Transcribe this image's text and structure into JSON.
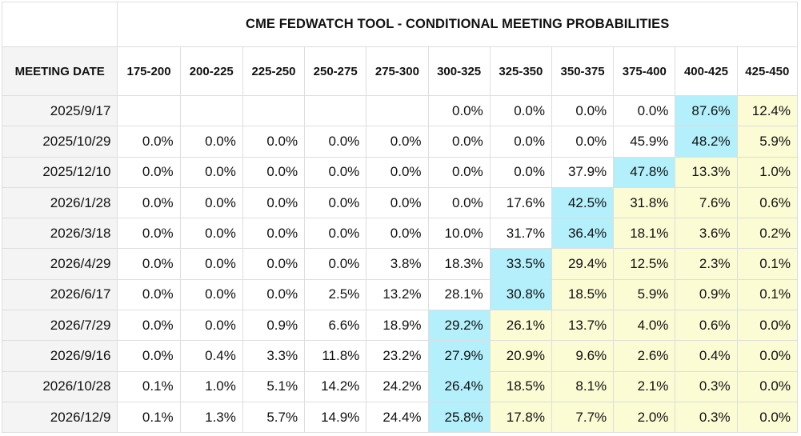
{
  "title": "CME FEDWATCH TOOL - CONDITIONAL MEETING PROBABILITIES",
  "date_header": "MEETING DATE",
  "columns": [
    "175-200",
    "200-225",
    "225-250",
    "250-275",
    "275-300",
    "300-325",
    "325-350",
    "350-375",
    "375-400",
    "400-425",
    "425-450"
  ],
  "colors": {
    "max_highlight": "#b3f0fb",
    "upper_range": "#fbfbd4",
    "date_column_bg": "#f4f4f4",
    "grid": "#dedede"
  },
  "rows": [
    {
      "date": "2025/9/17",
      "values": [
        "",
        "",
        "",
        "",
        "",
        "0.0%",
        "0.0%",
        "0.0%",
        "0.0%",
        "87.6%",
        "12.4%"
      ],
      "max_index": 9
    },
    {
      "date": "2025/10/29",
      "values": [
        "0.0%",
        "0.0%",
        "0.0%",
        "0.0%",
        "0.0%",
        "0.0%",
        "0.0%",
        "0.0%",
        "45.9%",
        "48.2%",
        "5.9%"
      ],
      "max_index": 9
    },
    {
      "date": "2025/12/10",
      "values": [
        "0.0%",
        "0.0%",
        "0.0%",
        "0.0%",
        "0.0%",
        "0.0%",
        "0.0%",
        "37.9%",
        "47.8%",
        "13.3%",
        "1.0%"
      ],
      "max_index": 8
    },
    {
      "date": "2026/1/28",
      "values": [
        "0.0%",
        "0.0%",
        "0.0%",
        "0.0%",
        "0.0%",
        "0.0%",
        "17.6%",
        "42.5%",
        "31.8%",
        "7.6%",
        "0.6%"
      ],
      "max_index": 7
    },
    {
      "date": "2026/3/18",
      "values": [
        "0.0%",
        "0.0%",
        "0.0%",
        "0.0%",
        "0.0%",
        "10.0%",
        "31.7%",
        "36.4%",
        "18.1%",
        "3.6%",
        "0.2%"
      ],
      "max_index": 7
    },
    {
      "date": "2026/4/29",
      "values": [
        "0.0%",
        "0.0%",
        "0.0%",
        "0.0%",
        "3.8%",
        "18.3%",
        "33.5%",
        "29.4%",
        "12.5%",
        "2.3%",
        "0.1%"
      ],
      "max_index": 6
    },
    {
      "date": "2026/6/17",
      "values": [
        "0.0%",
        "0.0%",
        "0.0%",
        "2.5%",
        "13.2%",
        "28.1%",
        "30.8%",
        "18.5%",
        "5.9%",
        "0.9%",
        "0.1%"
      ],
      "max_index": 6
    },
    {
      "date": "2026/7/29",
      "values": [
        "0.0%",
        "0.0%",
        "0.9%",
        "6.6%",
        "18.9%",
        "29.2%",
        "26.1%",
        "13.7%",
        "4.0%",
        "0.6%",
        "0.0%"
      ],
      "max_index": 5
    },
    {
      "date": "2026/9/16",
      "values": [
        "0.0%",
        "0.4%",
        "3.3%",
        "11.8%",
        "23.2%",
        "27.9%",
        "20.9%",
        "9.6%",
        "2.6%",
        "0.4%",
        "0.0%"
      ],
      "max_index": 5
    },
    {
      "date": "2026/10/28",
      "values": [
        "0.1%",
        "1.0%",
        "5.1%",
        "14.2%",
        "24.2%",
        "26.4%",
        "18.5%",
        "8.1%",
        "2.1%",
        "0.3%",
        "0.0%"
      ],
      "max_index": 5
    },
    {
      "date": "2026/12/9",
      "values": [
        "0.1%",
        "1.3%",
        "5.7%",
        "14.9%",
        "24.4%",
        "25.8%",
        "17.8%",
        "7.7%",
        "2.0%",
        "0.3%",
        "0.0%"
      ],
      "max_index": 5
    }
  ],
  "chart_data": {
    "type": "table",
    "title": "CME FEDWATCH TOOL - CONDITIONAL MEETING PROBABILITIES",
    "row_header": "MEETING DATE",
    "columns": [
      "175-200",
      "200-225",
      "225-250",
      "250-275",
      "275-300",
      "300-325",
      "325-350",
      "350-375",
      "375-400",
      "400-425",
      "425-450"
    ],
    "rows": [
      {
        "date": "2025/9/17",
        "values": [
          null,
          null,
          null,
          null,
          null,
          0.0,
          0.0,
          0.0,
          0.0,
          87.6,
          12.4
        ]
      },
      {
        "date": "2025/10/29",
        "values": [
          0.0,
          0.0,
          0.0,
          0.0,
          0.0,
          0.0,
          0.0,
          0.0,
          45.9,
          48.2,
          5.9
        ]
      },
      {
        "date": "2025/12/10",
        "values": [
          0.0,
          0.0,
          0.0,
          0.0,
          0.0,
          0.0,
          0.0,
          37.9,
          47.8,
          13.3,
          1.0
        ]
      },
      {
        "date": "2026/1/28",
        "values": [
          0.0,
          0.0,
          0.0,
          0.0,
          0.0,
          0.0,
          17.6,
          42.5,
          31.8,
          7.6,
          0.6
        ]
      },
      {
        "date": "2026/3/18",
        "values": [
          0.0,
          0.0,
          0.0,
          0.0,
          0.0,
          10.0,
          31.7,
          36.4,
          18.1,
          3.6,
          0.2
        ]
      },
      {
        "date": "2026/4/29",
        "values": [
          0.0,
          0.0,
          0.0,
          0.0,
          3.8,
          18.3,
          33.5,
          29.4,
          12.5,
          2.3,
          0.1
        ]
      },
      {
        "date": "2026/6/17",
        "values": [
          0.0,
          0.0,
          0.0,
          2.5,
          13.2,
          28.1,
          30.8,
          18.5,
          5.9,
          0.9,
          0.1
        ]
      },
      {
        "date": "2026/7/29",
        "values": [
          0.0,
          0.0,
          0.9,
          6.6,
          18.9,
          29.2,
          26.1,
          13.7,
          4.0,
          0.6,
          0.0
        ]
      },
      {
        "date": "2026/9/16",
        "values": [
          0.0,
          0.4,
          3.3,
          11.8,
          23.2,
          27.9,
          20.9,
          9.6,
          2.6,
          0.4,
          0.0
        ]
      },
      {
        "date": "2026/10/28",
        "values": [
          0.1,
          1.0,
          5.1,
          14.2,
          24.2,
          26.4,
          18.5,
          8.1,
          2.1,
          0.3,
          0.0
        ]
      },
      {
        "date": "2026/12/9",
        "values": [
          0.1,
          1.3,
          5.7,
          14.9,
          24.4,
          25.8,
          17.8,
          7.7,
          2.0,
          0.3,
          0.0
        ]
      }
    ]
  }
}
